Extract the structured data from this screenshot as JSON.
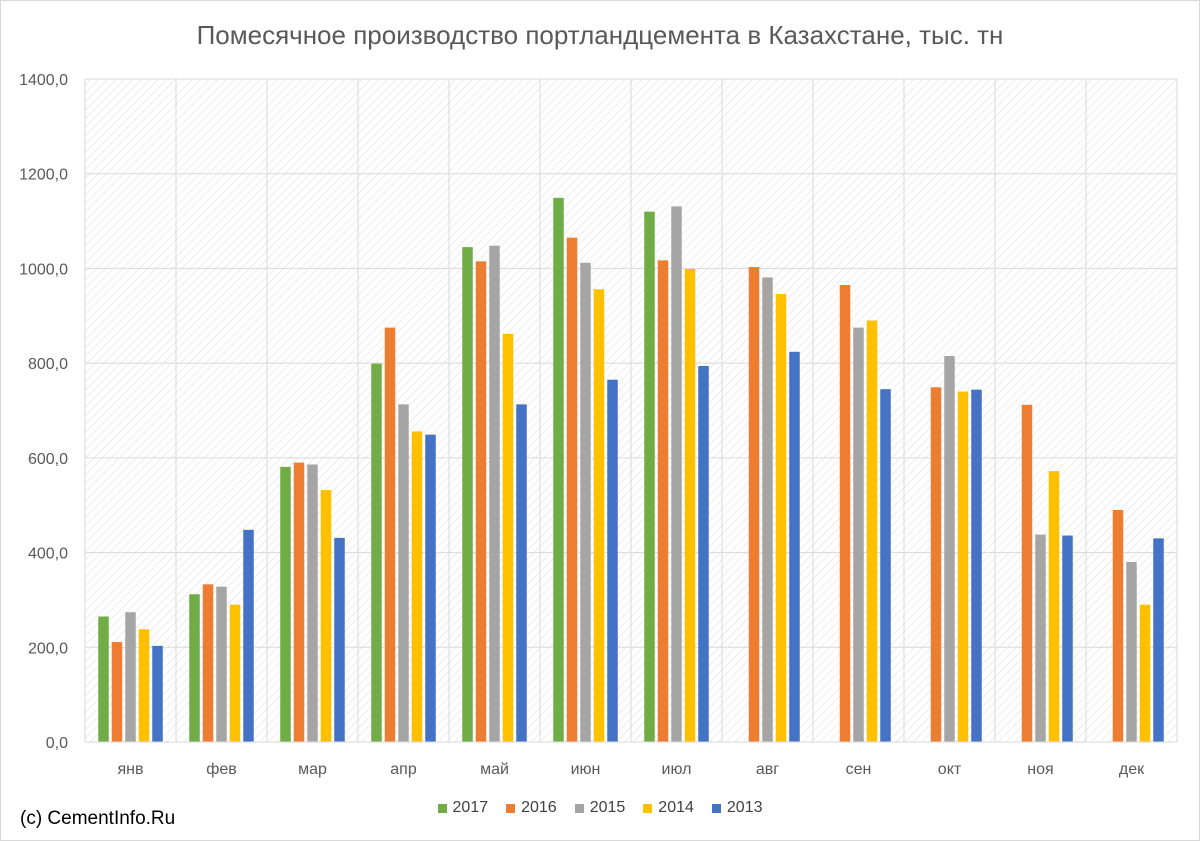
{
  "chart_data": {
    "type": "bar",
    "title": "Помесячное производство портландцемента в Казахстане, тыс. тн",
    "categories": [
      "янв",
      "фев",
      "мар",
      "апр",
      "май",
      "июн",
      "июл",
      "авг",
      "сен",
      "окт",
      "ноя",
      "дек"
    ],
    "series": [
      {
        "name": "2017",
        "color": "#70ad47",
        "values": [
          265,
          312,
          581,
          799,
          1045,
          1149,
          1120,
          null,
          null,
          null,
          null,
          null
        ]
      },
      {
        "name": "2016",
        "color": "#ed7d31",
        "values": [
          211,
          333,
          590,
          875,
          1015,
          1065,
          1017,
          1003,
          965,
          749,
          712,
          490
        ]
      },
      {
        "name": "2015",
        "color": "#a5a5a5",
        "values": [
          274,
          328,
          586,
          713,
          1048,
          1012,
          1131,
          981,
          875,
          815,
          438,
          380
        ]
      },
      {
        "name": "2014",
        "color": "#ffc000",
        "values": [
          238,
          290,
          532,
          656,
          862,
          956,
          999,
          946,
          890,
          740,
          572,
          290
        ]
      },
      {
        "name": "2013",
        "color": "#4472c4",
        "values": [
          203,
          448,
          431,
          649,
          713,
          765,
          794,
          824,
          745,
          744,
          436,
          430
        ]
      }
    ],
    "y_ticks": [
      "0,0",
      "200,0",
      "400,0",
      "600,0",
      "800,0",
      "1000,0",
      "1200,0",
      "1400,0"
    ],
    "ylim": [
      0,
      1400
    ],
    "xlabel": "",
    "ylabel": "",
    "grid": true,
    "legend_position": "bottom"
  },
  "source_note": "(c) CementInfo.Ru"
}
